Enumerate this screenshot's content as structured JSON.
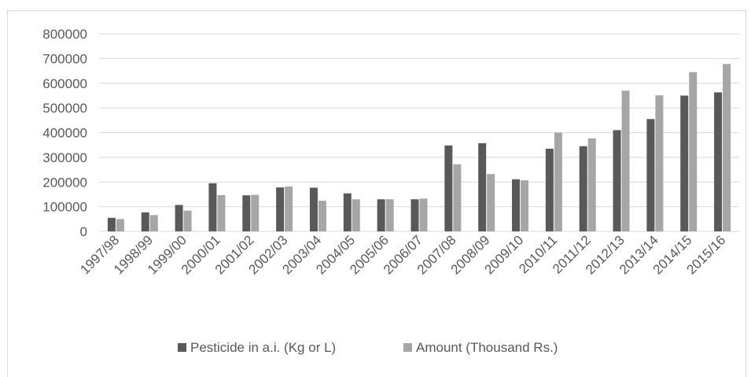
{
  "chart_data": {
    "type": "bar",
    "title": "",
    "xlabel": "",
    "ylabel": "",
    "ylim": [
      0,
      800000
    ],
    "yticks": [
      0,
      100000,
      200000,
      300000,
      400000,
      500000,
      600000,
      700000,
      800000
    ],
    "grid": true,
    "legend_position": "bottom",
    "categories": [
      "1997/98",
      "1998/99",
      "1999/00",
      "2000/01",
      "2001/02",
      "2002/03",
      "2003/04",
      "2004/05",
      "2005/06",
      "2006/07",
      "2007/08",
      "2008/09",
      "2009/10",
      "2010/11",
      "2011/12",
      "2012/13",
      "2013/14",
      "2014/15",
      "2015/16"
    ],
    "series": [
      {
        "name": "Pesticide in a.i. (Kg or L)",
        "color": "#595959",
        "values": [
          55000,
          77000,
          107000,
          195000,
          146000,
          178000,
          177000,
          154000,
          130000,
          130000,
          348000,
          357000,
          211000,
          335000,
          345000,
          410000,
          455000,
          550000,
          563000
        ]
      },
      {
        "name": "Amount (Thousand Rs.)",
        "color": "#a6a6a6",
        "values": [
          50000,
          66000,
          84000,
          147000,
          148000,
          182000,
          124000,
          130000,
          130000,
          133000,
          272000,
          232000,
          207000,
          400000,
          377000,
          570000,
          551000,
          645000,
          678000
        ]
      }
    ]
  }
}
